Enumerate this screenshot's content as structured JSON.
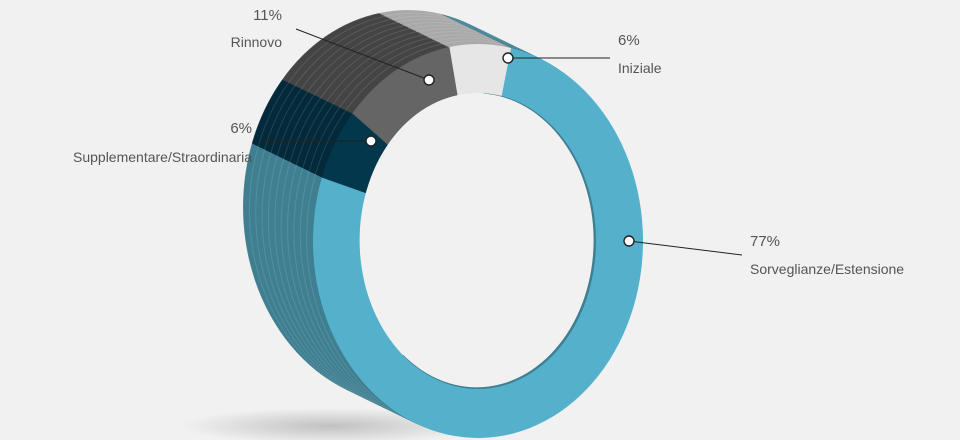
{
  "chart_data": {
    "type": "pie",
    "style": "3d-donut",
    "title": "",
    "series": [
      {
        "label": "Iniziale",
        "percent_label": "6%",
        "value": 6,
        "color": "#e6e6e6",
        "side_color": "#a9a9a9"
      },
      {
        "label": "Sorveglianze/Estensione",
        "percent_label": "77%",
        "value": 77,
        "color": "#55b1cb",
        "side_color": "#3f7f91"
      },
      {
        "label": "Supplementare/Straordinaria",
        "percent_label": "6%",
        "value": 6,
        "color": "#03374c",
        "side_color": "#022a3a"
      },
      {
        "label": "Rinnovo",
        "percent_label": "11%",
        "value": 11,
        "color": "#656565",
        "side_color": "#444444"
      }
    ]
  },
  "colors": {
    "background": "#f1f1f1",
    "text": "#555555",
    "leader_line": "#222222"
  }
}
